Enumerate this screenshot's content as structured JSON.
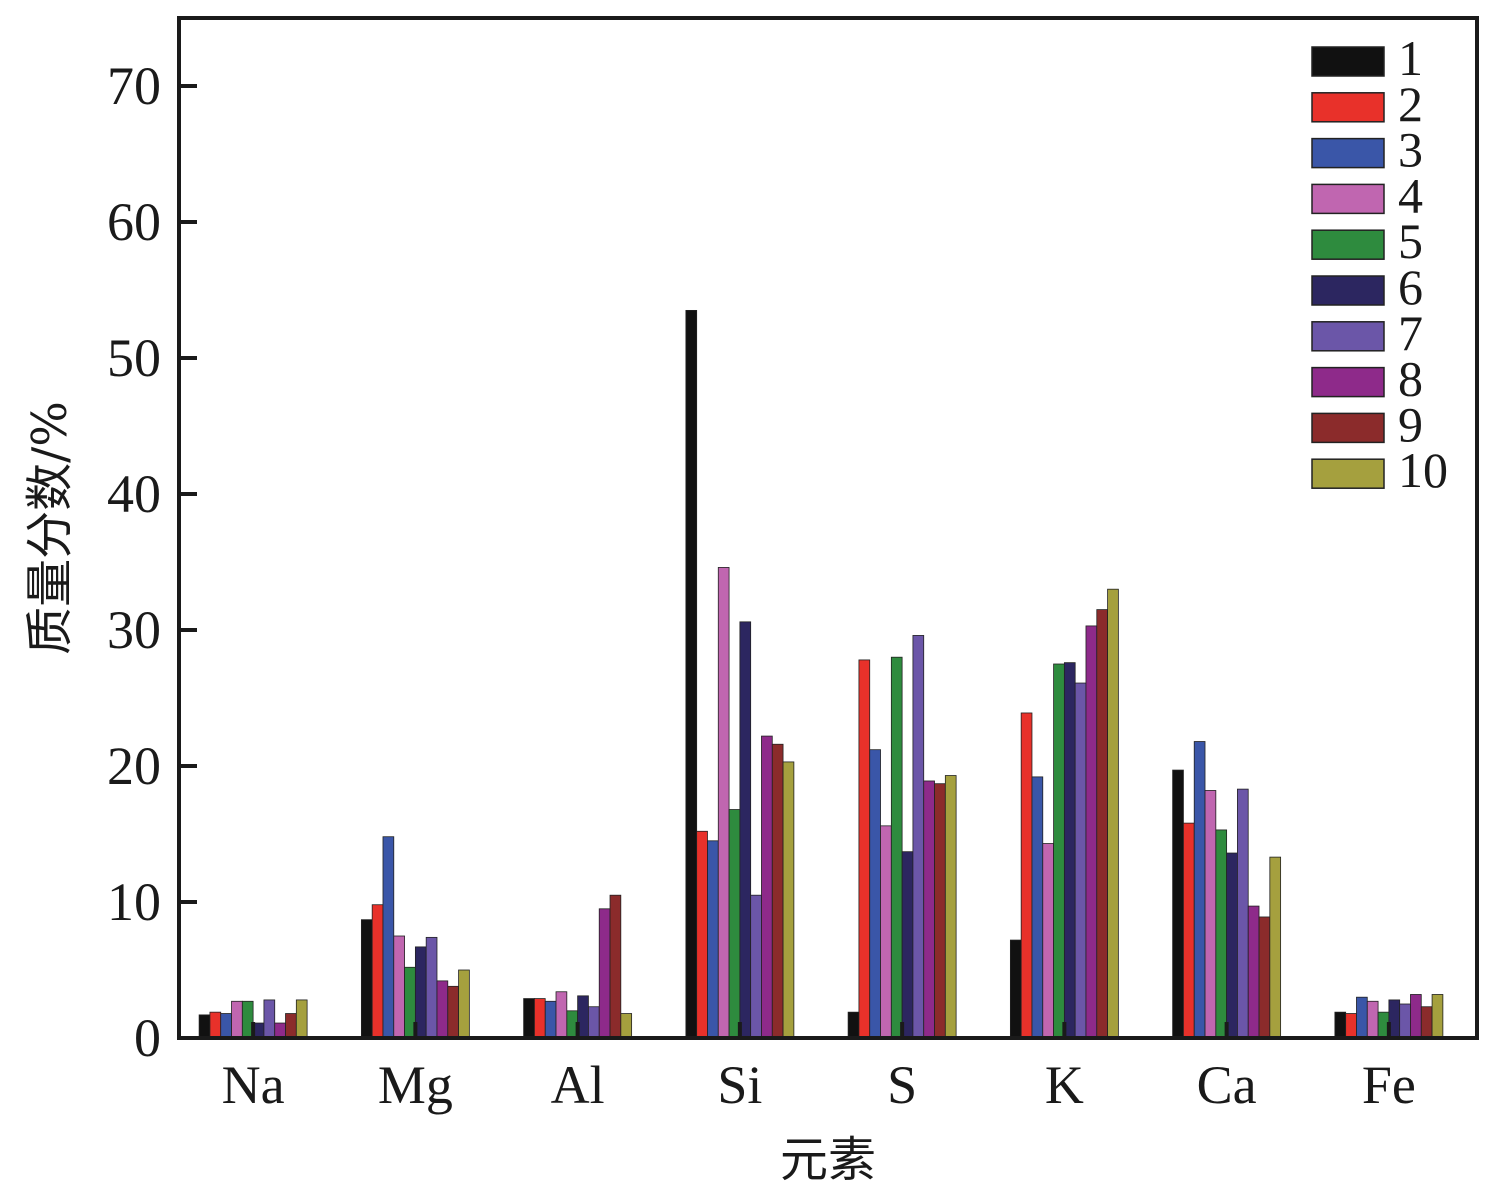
{
  "chart_data": {
    "type": "bar",
    "title": "",
    "xlabel": "元素",
    "ylabel": "质量分数/%",
    "ylim": [
      0,
      75
    ],
    "yticks": [
      0,
      10,
      20,
      30,
      40,
      50,
      60,
      70
    ],
    "grid": false,
    "legend_position": "top-right",
    "categories": [
      "Na",
      "Mg",
      "Al",
      "Si",
      "S",
      "K",
      "Ca",
      "Fe"
    ],
    "series": [
      {
        "name": "1",
        "color": "#111111",
        "values": [
          1.7,
          8.7,
          2.9,
          53.5,
          1.9,
          7.2,
          19.7,
          1.9
        ]
      },
      {
        "name": "2",
        "color": "#e8312a",
        "values": [
          1.9,
          9.8,
          2.9,
          15.2,
          27.8,
          23.9,
          15.8,
          1.8
        ]
      },
      {
        "name": "3",
        "color": "#3a56a8",
        "values": [
          1.8,
          14.8,
          2.7,
          14.5,
          21.2,
          19.2,
          21.8,
          3.0
        ]
      },
      {
        "name": "4",
        "color": "#c066b0",
        "values": [
          2.7,
          7.5,
          3.4,
          34.6,
          15.6,
          14.3,
          18.2,
          2.7
        ]
      },
      {
        "name": "5",
        "color": "#2e8b3e",
        "values": [
          2.7,
          5.2,
          2.0,
          16.8,
          28.0,
          27.5,
          15.3,
          1.9
        ]
      },
      {
        "name": "6",
        "color": "#2c2660",
        "values": [
          1.1,
          6.7,
          3.1,
          30.6,
          13.7,
          27.6,
          13.6,
          2.8
        ]
      },
      {
        "name": "7",
        "color": "#6b56a8",
        "values": [
          2.8,
          7.4,
          2.3,
          10.5,
          29.6,
          26.1,
          18.3,
          2.5
        ]
      },
      {
        "name": "8",
        "color": "#8e2a8a",
        "values": [
          1.1,
          4.2,
          9.5,
          22.2,
          18.9,
          30.3,
          9.7,
          3.2
        ]
      },
      {
        "name": "9",
        "color": "#8b2b2b",
        "values": [
          1.8,
          3.8,
          10.5,
          21.6,
          18.7,
          31.5,
          8.9,
          2.3
        ]
      },
      {
        "name": "10",
        "color": "#a5a03e",
        "values": [
          2.8,
          5.0,
          1.8,
          20.3,
          19.3,
          33.0,
          13.3,
          3.2
        ]
      }
    ]
  }
}
